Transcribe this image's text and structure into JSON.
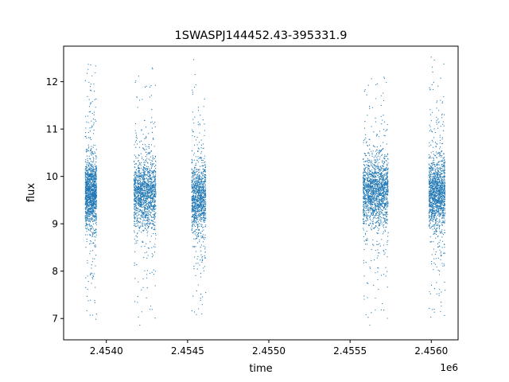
{
  "chart_data": {
    "type": "scatter",
    "title": "1SWASPJ144452.43-395331.9",
    "xlabel": "time",
    "ylabel": "flux",
    "x_offset_label": "1e6",
    "xlim": [
      2453737,
      2456165
    ],
    "ylim": [
      6.55,
      12.75
    ],
    "xticks": [
      2454000,
      2454500,
      2455000,
      2455500,
      2456000
    ],
    "xtick_labels": [
      "2.4540",
      "2.4545",
      "2.4550",
      "2.4555",
      "2.4560"
    ],
    "yticks": [
      7,
      8,
      9,
      10,
      11,
      12
    ],
    "ytick_labels": [
      "7",
      "8",
      "9",
      "10",
      "11",
      "12"
    ],
    "grid": false,
    "marker_color": "#1f77b4",
    "clusters": [
      {
        "x_range": [
          2453870,
          2453940
        ],
        "y_center": 9.65,
        "y_min": 6.8,
        "y_max": 12.55,
        "n": 1400
      },
      {
        "x_range": [
          2454170,
          2454305
        ],
        "y_center": 9.65,
        "y_min": 6.85,
        "y_max": 12.35,
        "n": 1500
      },
      {
        "x_range": [
          2454525,
          2454612
        ],
        "y_center": 9.55,
        "y_min": 6.85,
        "y_max": 12.5,
        "n": 1100
      },
      {
        "x_range": [
          2455580,
          2455735
        ],
        "y_center": 9.7,
        "y_min": 6.85,
        "y_max": 12.15,
        "n": 1700
      },
      {
        "x_range": [
          2455985,
          2456085
        ],
        "y_center": 9.65,
        "y_min": 6.9,
        "y_max": 12.55,
        "n": 1400
      }
    ]
  }
}
